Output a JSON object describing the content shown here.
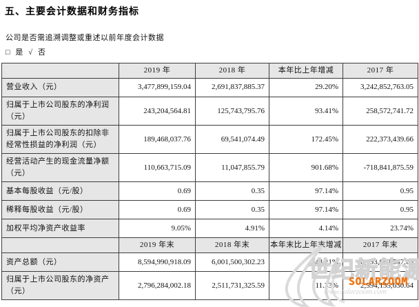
{
  "page": {
    "heading": "五、主要会计数据和财务指标",
    "restatement_question": "公司是否需追溯调整或重述以前年度会计数据",
    "answer": {
      "yes_box": "□",
      "yes_label": "是",
      "no_check": "√",
      "no_label": "否"
    }
  },
  "table": {
    "sections": [
      {
        "header": [
          "",
          "2019 年",
          "2018 年",
          "本年比上年增减",
          "2017 年"
        ],
        "rows": [
          {
            "label": "营业收入（元）",
            "values": [
              "3,477,899,159.04",
              "2,691,837,885.37",
              "29.20%",
              "3,242,852,763.05"
            ]
          },
          {
            "label": "归属于上市公司股东的净利润（元）",
            "values": [
              "243,204,564.81",
              "125,743,795.76",
              "93.41%",
              "258,572,741.72"
            ]
          },
          {
            "label": "归属于上市公司股东的扣除非经常性损益的净利润（元）",
            "values": [
              "189,468,037.76",
              "69,541,074.49",
              "172.45%",
              "222,373,439.66"
            ]
          },
          {
            "label": "经营活动产生的现金流量净额（元）",
            "values": [
              "110,663,715.09",
              "11,047,855.79",
              "901.68%",
              "-718,841,875.59"
            ]
          },
          {
            "label": "基本每股收益（元/股）",
            "values": [
              "0.69",
              "0.35",
              "97.14%",
              "0.95"
            ]
          },
          {
            "label": "稀释每股收益（元/股）",
            "values": [
              "0.69",
              "0.35",
              "97.14%",
              "0.95"
            ]
          },
          {
            "label": "加权平均净资产收益率",
            "values": [
              "9.05%",
              "4.91%",
              "4.14%",
              "23.74%"
            ]
          }
        ]
      },
      {
        "header": [
          "",
          "2019 年末",
          "2018 年末",
          "本年末比上年末增减",
          "2017 年末"
        ],
        "rows": [
          {
            "label": "资产总额（元）",
            "values": [
              "8,594,990,918.09",
              "6,001,500,302.23",
              "43.21%",
              "6,193,660,547.66"
            ]
          },
          {
            "label": "归属于上市公司股东的净资产（元）",
            "values": [
              "2,796,284,002.18",
              "2,511,731,325.59",
              "11.33%",
              "2,594,135,630.64"
            ]
          }
        ]
      }
    ]
  },
  "watermark": {
    "cn_text": "世纪新能源网",
    "brand": "SOLARZOOM",
    "url": "www.solarzoom.com"
  },
  "colors": {
    "brand_orange": "#ee7411",
    "header_bg": "#e6e6e6",
    "table_border": "#3c3c3c",
    "watermark_gray": "#d2d2d2"
  }
}
